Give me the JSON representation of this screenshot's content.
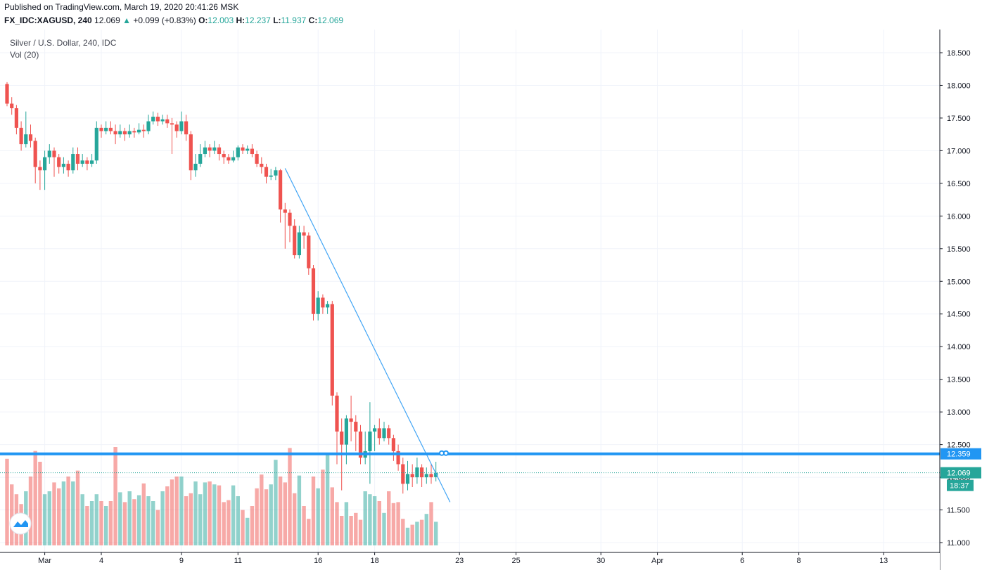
{
  "header": {
    "published": "Published on TradingView.com, March 19, 2020 20:41:26 MSK",
    "symbol": "FX_IDC:XAGUSD, 240",
    "last": "12.069",
    "change": "+0.099 (+0.83%)",
    "open_label": "O:",
    "open": "12.003",
    "high_label": "H:",
    "high": "12.237",
    "low_label": "L:",
    "low": "11.937",
    "close_label": "C:",
    "close": "12.069"
  },
  "legend": {
    "title": "Silver / U.S. Dollar, 240, IDC",
    "volume": "Vol (20)"
  },
  "colors": {
    "up": "#26a69a",
    "down": "#ef5350",
    "line": "#2196f3",
    "grid": "#f0f3fa"
  },
  "chart_data": {
    "type": "candlestick",
    "title": "Silver / U.S. Dollar, 240, IDC",
    "ylim": [
      11.0,
      18.75
    ],
    "y_ticks": [
      "18.500",
      "18.000",
      "17.500",
      "17.000",
      "16.500",
      "16.000",
      "15.500",
      "15.000",
      "14.500",
      "14.000",
      "13.500",
      "13.000",
      "12.500",
      "12.000",
      "11.500",
      "11.000"
    ],
    "x_ticks": [
      {
        "label": "Mar",
        "idx": 8
      },
      {
        "label": "4",
        "idx": 20
      },
      {
        "label": "9",
        "idx": 37
      },
      {
        "label": "11",
        "idx": 49
      },
      {
        "label": "16",
        "idx": 66
      },
      {
        "label": "18",
        "idx": 78
      },
      {
        "label": "23",
        "idx": 96
      },
      {
        "label": "25",
        "idx": 108
      },
      {
        "label": "30",
        "idx": 126
      },
      {
        "label": "Apr",
        "idx": 138
      },
      {
        "label": "6",
        "idx": 156
      },
      {
        "label": "8",
        "idx": 168
      },
      {
        "label": "13",
        "idx": 186
      }
    ],
    "candles": [
      [
        18.02,
        17.72,
        18.05,
        17.68
      ],
      [
        17.72,
        17.65,
        17.82,
        17.55
      ],
      [
        17.65,
        17.35,
        17.7,
        17.25
      ],
      [
        17.35,
        17.1,
        17.45,
        17.0
      ],
      [
        17.1,
        17.25,
        17.6,
        17.05
      ],
      [
        17.25,
        17.15,
        17.4,
        17.05
      ],
      [
        17.15,
        16.75,
        17.2,
        16.5
      ],
      [
        16.75,
        16.7,
        16.85,
        16.4
      ],
      [
        16.7,
        16.9,
        17.0,
        16.4
      ],
      [
        16.9,
        17.0,
        17.1,
        16.8
      ],
      [
        17.0,
        16.9,
        17.05,
        16.6
      ],
      [
        16.9,
        16.75,
        16.95,
        16.65
      ],
      [
        16.75,
        16.8,
        16.9,
        16.65
      ],
      [
        16.8,
        16.7,
        16.85,
        16.6
      ],
      [
        16.7,
        16.95,
        17.05,
        16.65
      ],
      [
        16.95,
        16.8,
        17.05,
        16.7
      ],
      [
        16.8,
        16.85,
        16.95,
        16.75
      ],
      [
        16.85,
        16.8,
        16.9,
        16.7
      ],
      [
        16.8,
        16.85,
        16.95,
        16.75
      ],
      [
        16.85,
        17.35,
        17.45,
        16.8
      ],
      [
        17.35,
        17.3,
        17.4,
        17.2
      ],
      [
        17.3,
        17.35,
        17.45,
        17.25
      ],
      [
        17.35,
        17.3,
        17.45,
        17.25
      ],
      [
        17.3,
        17.25,
        17.4,
        17.1
      ],
      [
        17.25,
        17.3,
        17.4,
        17.2
      ],
      [
        17.3,
        17.25,
        17.35,
        17.15
      ],
      [
        17.25,
        17.3,
        17.4,
        17.2
      ],
      [
        17.3,
        17.28,
        17.35,
        17.2
      ],
      [
        17.28,
        17.32,
        17.42,
        17.25
      ],
      [
        17.32,
        17.3,
        17.4,
        17.2
      ],
      [
        17.3,
        17.45,
        17.55,
        17.25
      ],
      [
        17.45,
        17.52,
        17.6,
        17.4
      ],
      [
        17.52,
        17.45,
        17.58,
        17.38
      ],
      [
        17.45,
        17.48,
        17.55,
        17.4
      ],
      [
        17.48,
        17.42,
        17.55,
        17.35
      ],
      [
        17.42,
        17.4,
        17.5,
        16.95
      ],
      [
        17.4,
        17.3,
        17.45,
        17.2
      ],
      [
        17.3,
        17.45,
        17.6,
        17.25
      ],
      [
        17.45,
        17.25,
        17.55,
        17.15
      ],
      [
        17.25,
        16.7,
        17.3,
        16.55
      ],
      [
        16.7,
        16.8,
        16.95,
        16.6
      ],
      [
        16.8,
        16.95,
        17.1,
        16.75
      ],
      [
        16.95,
        17.05,
        17.15,
        16.9
      ],
      [
        17.05,
        17.0,
        17.1,
        16.9
      ],
      [
        17.0,
        17.05,
        17.15,
        16.95
      ],
      [
        17.05,
        16.95,
        17.1,
        16.85
      ],
      [
        16.95,
        16.9,
        17.0,
        16.8
      ],
      [
        16.9,
        16.85,
        16.95,
        16.8
      ],
      [
        16.85,
        16.9,
        17.0,
        16.82
      ],
      [
        16.9,
        17.05,
        17.08,
        16.85
      ],
      [
        17.05,
        17.0,
        17.1,
        16.95
      ],
      [
        17.0,
        17.03,
        17.08,
        16.95
      ],
      [
        17.03,
        16.95,
        17.1,
        16.9
      ],
      [
        16.95,
        16.8,
        17.0,
        16.75
      ],
      [
        16.8,
        16.75,
        16.9,
        16.65
      ],
      [
        16.75,
        16.6,
        16.8,
        16.5
      ],
      [
        16.6,
        16.62,
        16.72,
        16.55
      ],
      [
        16.62,
        16.7,
        16.75,
        16.55
      ],
      [
        16.7,
        16.1,
        16.72,
        15.9
      ],
      [
        16.1,
        16.05,
        16.2,
        15.5
      ],
      [
        16.05,
        15.85,
        16.1,
        15.6
      ],
      [
        15.85,
        15.4,
        15.95,
        15.35
      ],
      [
        15.4,
        15.75,
        15.85,
        15.35
      ],
      [
        15.75,
        15.7,
        15.85,
        15.5
      ],
      [
        15.7,
        15.2,
        15.75,
        15.1
      ],
      [
        15.2,
        14.5,
        15.25,
        14.4
      ],
      [
        14.5,
        14.75,
        14.85,
        14.4
      ],
      [
        14.75,
        14.6,
        14.8,
        14.5
      ],
      [
        14.6,
        14.65,
        14.7,
        14.5
      ],
      [
        14.65,
        13.25,
        14.7,
        13.1
      ],
      [
        13.25,
        12.7,
        13.3,
        12.2
      ],
      [
        12.7,
        12.5,
        12.9,
        11.8
      ],
      [
        12.5,
        12.9,
        12.95,
        12.2
      ],
      [
        12.9,
        12.85,
        13.25,
        12.55
      ],
      [
        12.85,
        12.7,
        12.95,
        12.4
      ],
      [
        12.7,
        12.3,
        12.8,
        12.2
      ],
      [
        12.3,
        12.4,
        12.7,
        12.2
      ],
      [
        12.4,
        12.7,
        13.15,
        11.9
      ],
      [
        12.7,
        12.75,
        12.8,
        12.4
      ],
      [
        12.75,
        12.6,
        12.9,
        12.5
      ],
      [
        12.6,
        12.75,
        12.85,
        12.55
      ],
      [
        12.75,
        12.6,
        12.8,
        12.5
      ],
      [
        12.6,
        12.4,
        12.65,
        12.25
      ],
      [
        12.4,
        12.2,
        12.5,
        12.1
      ],
      [
        12.2,
        11.9,
        12.3,
        11.75
      ],
      [
        11.9,
        12.05,
        12.25,
        11.8
      ],
      [
        12.05,
        12.0,
        12.2,
        11.85
      ],
      [
        12.0,
        12.15,
        12.3,
        11.9
      ],
      [
        12.15,
        12.0,
        12.2,
        11.85
      ],
      [
        12.0,
        12.05,
        12.15,
        11.9
      ],
      [
        12.05,
        12.0,
        12.2,
        11.9
      ],
      [
        12.003,
        12.069,
        12.237,
        11.937
      ]
    ],
    "volumes": [
      88,
      62,
      52,
      42,
      55,
      70,
      96,
      85,
      52,
      55,
      64,
      58,
      65,
      70,
      65,
      76,
      52,
      40,
      45,
      52,
      45,
      40,
      45,
      100,
      54,
      44,
      55,
      47,
      51,
      63,
      50,
      45,
      36,
      55,
      60,
      67,
      70,
      70,
      50,
      53,
      65,
      52,
      64,
      65,
      62,
      61,
      44,
      46,
      61,
      50,
      36,
      28,
      40,
      58,
      72,
      57,
      62,
      87,
      70,
      64,
      99,
      53,
      71,
      40,
      27,
      70,
      58,
      77,
      94,
      59,
      44,
      30,
      44,
      30,
      33,
      26,
      55,
      52,
      50,
      45,
      33,
      55,
      43,
      44,
      27,
      18,
      21,
      24,
      26,
      32,
      44,
      24
    ],
    "horizontal_line": {
      "price": 12.359,
      "label": "12.359"
    },
    "last_price": {
      "price": 12.069,
      "label": "12.069",
      "countdown": "18:37"
    },
    "trendline": {
      "from": {
        "idx": 59,
        "price": 16.73
      },
      "to": {
        "idx": 94,
        "price": 11.62
      }
    }
  }
}
